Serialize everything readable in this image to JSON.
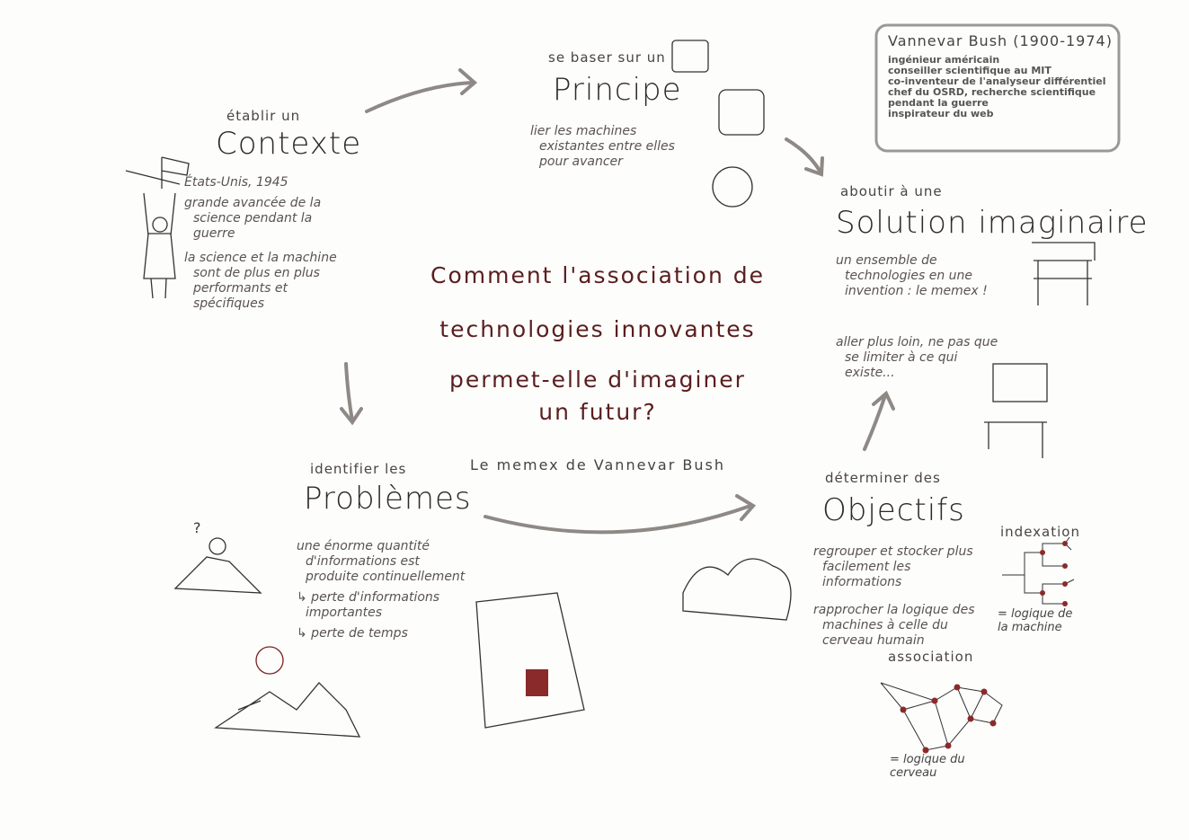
{
  "center": {
    "question_lines": [
      "Comment l'association de",
      "technologies innovantes",
      "permet-elle d'imaginer",
      "un futur?"
    ],
    "subtitle": "Le memex de Vannevar Bush"
  },
  "sections": [
    {
      "kicker": "établir un",
      "title": "Contexte",
      "bullets": [
        "États-Unis, 1945",
        "grande avancée de la science pendant la guerre",
        "la science et la machine sont de plus en plus performants et spécifiques"
      ]
    },
    {
      "kicker": "se baser sur un",
      "title": "Principe",
      "bullets": [
        "lier les machines existantes entre elles pour avancer"
      ]
    },
    {
      "kicker": "aboutir à une",
      "title": "Solution imaginaire",
      "bullets": [
        "un ensemble de technologies en une invention : le memex !",
        "aller plus loin, ne pas que se limiter à ce qui existe..."
      ]
    },
    {
      "kicker": "identifier les",
      "title": "Problèmes",
      "bullets": [
        "une énorme quantité d'informations est produite continuellement",
        "↳ perte d'informations importantes",
        "↳ perte de temps"
      ]
    },
    {
      "kicker": "déterminer des",
      "title": "Objectifs",
      "bullets": [
        "regrouper et stocker plus facilement les informations",
        "rapprocher la logique des machines à celle du cerveau humain"
      ]
    }
  ],
  "bio": {
    "title": "Vannevar Bush (1900-1974)",
    "items": [
      "ingénieur américain",
      "conseiller scientifique au MIT",
      "co-inventeur de l'analyseur différentiel",
      "chef du OSRD, recherche scientifique pendant la guerre",
      "inspirateur du web"
    ]
  },
  "labels": {
    "indexation": "indexation",
    "indexation_note": "= logique de la machine",
    "association": "association",
    "association_note": "= logique du cerveau",
    "question_mark": "?"
  }
}
